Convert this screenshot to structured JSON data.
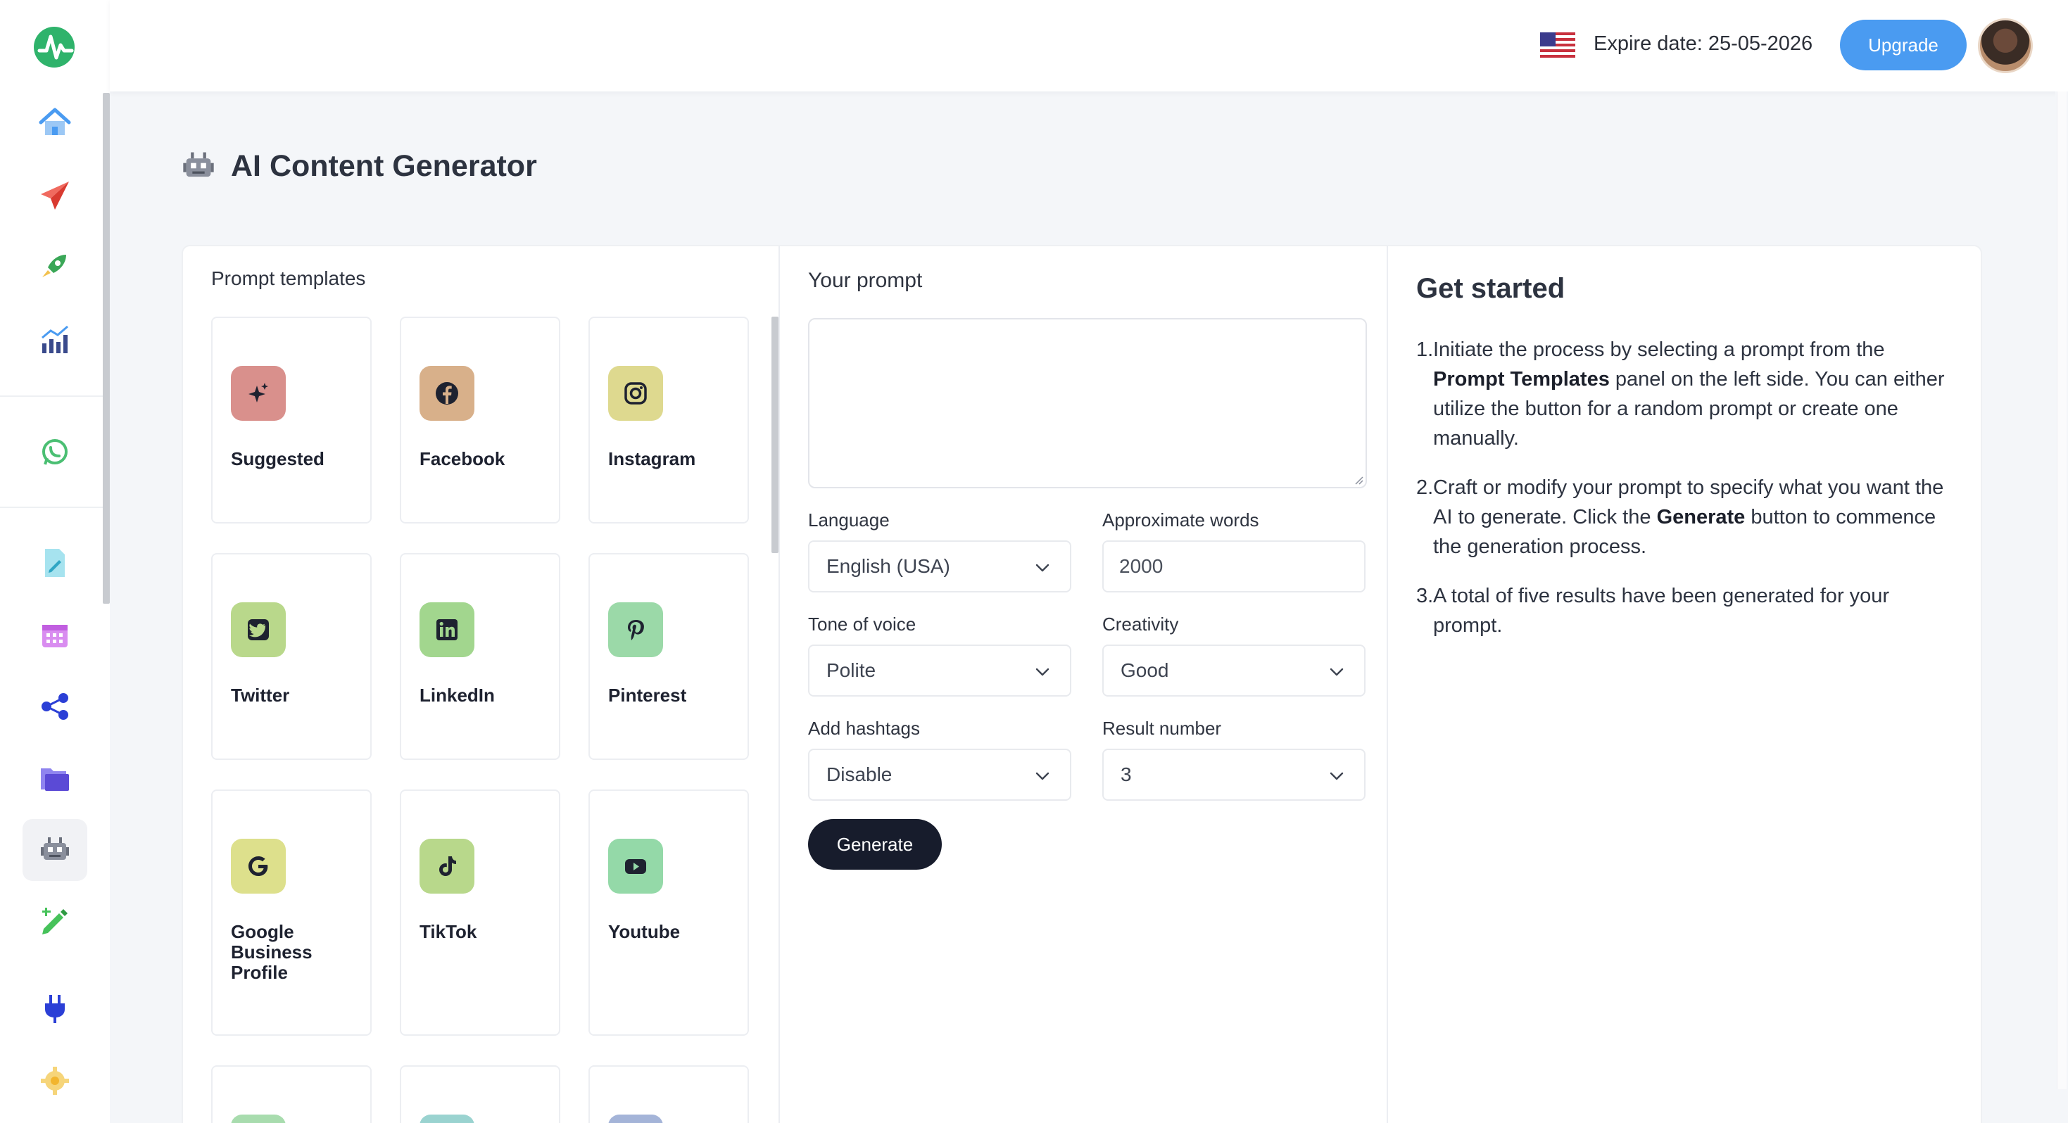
{
  "header": {
    "flag": "us-flag-icon",
    "expire_text": "Expire date: 25-05-2026",
    "upgrade_label": "Upgrade"
  },
  "sidebar": {
    "items": [
      {
        "name": "home-icon",
        "color": "#4a9bf1"
      },
      {
        "name": "paper-plane-icon",
        "color": "#e8453c"
      },
      {
        "name": "rocket-icon",
        "color": "#3aa757"
      },
      {
        "name": "chart-icon",
        "color": "#3a4a8c"
      },
      {
        "name": "whatsapp-icon",
        "color": "#4bbf73"
      },
      {
        "name": "document-edit-icon",
        "color": "#56c2d8"
      },
      {
        "name": "calendar-icon",
        "color": "#c15ee0"
      },
      {
        "name": "share-icon",
        "color": "#2b3fd6"
      },
      {
        "name": "folder-icon",
        "color": "#6b5be0"
      },
      {
        "name": "robot-icon",
        "color": "#7a7f8c"
      },
      {
        "name": "pencil-icon",
        "color": "#46c25a"
      },
      {
        "name": "plug-icon",
        "color": "#2b3fd6"
      },
      {
        "name": "gear-icon",
        "color": "#f2c14e"
      }
    ]
  },
  "page": {
    "title": "AI Content Generator"
  },
  "templates": {
    "title": "Prompt templates",
    "cards": [
      {
        "label": "Suggested",
        "icon": "sparkle-star-icon",
        "bg": "#d9908c"
      },
      {
        "label": "Facebook",
        "icon": "facebook-icon",
        "bg": "#d8b08a"
      },
      {
        "label": "Instagram",
        "icon": "instagram-icon",
        "bg": "#ded98f"
      },
      {
        "label": "Twitter",
        "icon": "twitter-icon",
        "bg": "#b9d88b"
      },
      {
        "label": "LinkedIn",
        "icon": "linkedin-icon",
        "bg": "#a2d68e"
      },
      {
        "label": "Pinterest",
        "icon": "pinterest-icon",
        "bg": "#9bd9a8"
      },
      {
        "label": "Google Business Profile",
        "icon": "google-icon",
        "bg": "#dde08c"
      },
      {
        "label": "TikTok",
        "icon": "tiktok-icon",
        "bg": "#b8d88b"
      },
      {
        "label": "Youtube",
        "icon": "youtube-icon",
        "bg": "#94d9a8"
      }
    ],
    "partial_card_colors": [
      "#a8dcae",
      "#9ad3d0",
      "#a4b4d8"
    ]
  },
  "prompt": {
    "title": "Your prompt",
    "value": "",
    "language_label": "Language",
    "language_value": "English (USA)",
    "words_label": "Approximate words",
    "words_value": "2000",
    "tone_label": "Tone of voice",
    "tone_value": "Polite",
    "creativity_label": "Creativity",
    "creativity_value": "Good",
    "hashtags_label": "Add hashtags",
    "hashtags_value": "Disable",
    "result_label": "Result number",
    "result_value": "3",
    "generate_label": "Generate"
  },
  "get_started": {
    "title": "Get started",
    "steps": [
      {
        "num": "1.",
        "pre": "Initiate the process by selecting a prompt from the ",
        "bold": "Prompt Templates",
        "post": " panel on the left side. You can either utilize the button for a random prompt or create one manually."
      },
      {
        "num": "2.",
        "pre": "Craft or modify your prompt to specify what you want the AI to generate. Click the ",
        "bold": "Generate",
        "post": " button to commence the generation process."
      },
      {
        "num": "3.",
        "pre": "A total of five results have been generated for your prompt.",
        "bold": "",
        "post": ""
      }
    ]
  }
}
